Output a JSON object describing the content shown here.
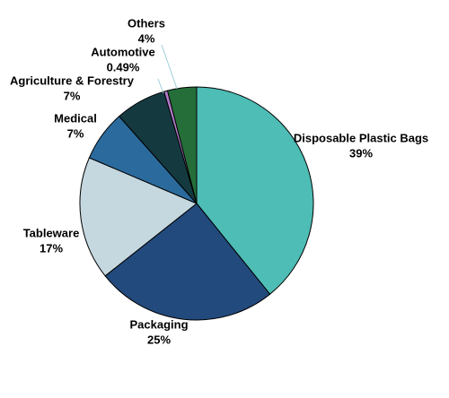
{
  "chart_data": {
    "type": "pie",
    "categories": [
      "Disposable Plastic Bags",
      "Packaging",
      "Tableware",
      "Medical",
      "Agriculture & Forestry",
      "Automotive",
      "Others"
    ],
    "values": [
      39,
      25,
      17,
      7,
      7,
      0.49,
      4
    ],
    "value_labels": [
      "39%",
      "25%",
      "17%",
      "7%",
      "7%",
      "0.49%",
      "4%"
    ],
    "colors": [
      "#4dbdb5",
      "#234a7c",
      "#c5d8e0",
      "#2b6a9c",
      "#143a40",
      "#b07ac8",
      "#256e3a"
    ]
  }
}
